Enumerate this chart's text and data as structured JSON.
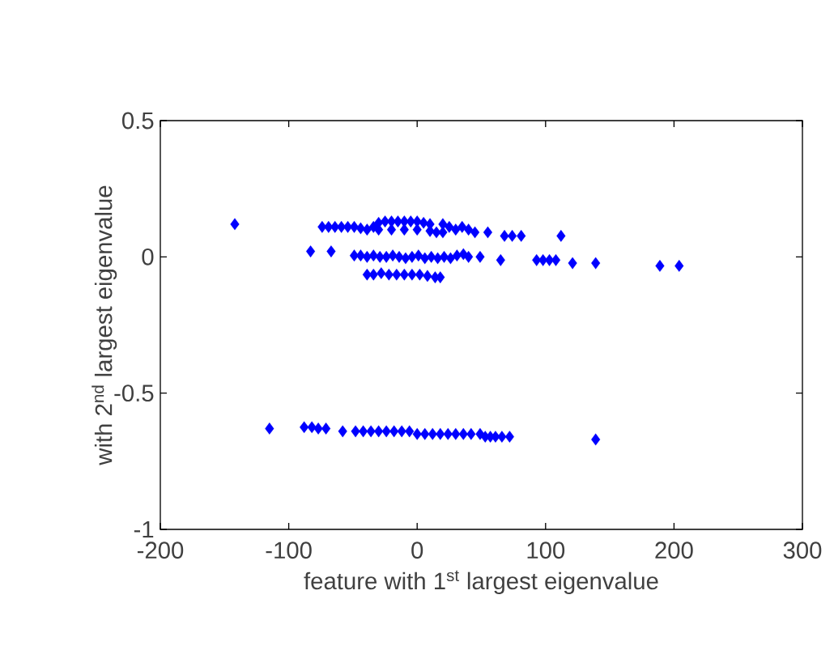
{
  "chart_data": {
    "type": "scatter",
    "xlabel": "feature with 1$^{st}$ largest eigenvalue",
    "ylabel": "with 2$^{nd}$ largest eigenvalue",
    "xlim": [
      -200,
      300
    ],
    "xticks": [
      -200,
      -100,
      0,
      100,
      200,
      300
    ],
    "ylim": [
      -1,
      0.5
    ],
    "yticks": [
      -1,
      -0.5,
      0,
      0.5
    ],
    "marker": "diamond",
    "grid": false,
    "series": [
      {
        "color": "#0000ff",
        "x": [
          -142,
          -74,
          -69,
          -64,
          -59,
          -54,
          -49,
          -44,
          -39,
          -34,
          -30,
          -25,
          -20,
          -15,
          -10,
          -5,
          0,
          5,
          10,
          -30,
          -20,
          -10,
          0,
          10,
          15,
          20,
          20,
          25,
          30,
          35,
          40,
          45,
          55,
          68,
          74,
          81,
          112,
          -83,
          -67,
          -49,
          -44,
          -39,
          -34,
          -29,
          -24,
          -19,
          -14,
          -9,
          -4,
          1,
          6,
          11,
          16,
          21,
          26,
          31,
          36,
          40,
          49,
          65,
          93,
          98,
          103,
          108,
          121,
          139,
          189,
          204,
          -39,
          -34,
          -28,
          -22,
          -16,
          -10,
          -4,
          2,
          8,
          14,
          18,
          -115,
          -88,
          -82,
          -77,
          -71,
          -58,
          -48,
          -42,
          -36,
          -30,
          -24,
          -18,
          -12,
          -6,
          0,
          6,
          12,
          18,
          24,
          30,
          36,
          42,
          49,
          53,
          57,
          61,
          66,
          72,
          139
        ],
        "values": [
          0.12,
          0.11,
          0.11,
          0.11,
          0.11,
          0.11,
          0.11,
          0.105,
          0.1,
          0.11,
          0.125,
          0.13,
          0.13,
          0.13,
          0.13,
          0.13,
          0.13,
          0.125,
          0.12,
          0.1,
          0.1,
          0.1,
          0.1,
          0.095,
          0.09,
          0.09,
          0.12,
          0.11,
          0.1,
          0.11,
          0.1,
          0.09,
          0.09,
          0.077,
          0.077,
          0.077,
          0.077,
          0.02,
          0.02,
          0.005,
          0.005,
          0.0,
          0.005,
          0.0,
          0.0,
          0.005,
          0.0,
          -0.005,
          0.0,
          0.005,
          -0.005,
          0.0,
          -0.005,
          0.0,
          -0.005,
          0.005,
          0.01,
          0.0,
          0.0,
          -0.012,
          -0.012,
          -0.012,
          -0.012,
          -0.012,
          -0.023,
          -0.023,
          -0.033,
          -0.033,
          -0.065,
          -0.065,
          -0.06,
          -0.065,
          -0.065,
          -0.065,
          -0.065,
          -0.065,
          -0.07,
          -0.075,
          -0.075,
          -0.63,
          -0.625,
          -0.625,
          -0.63,
          -0.63,
          -0.64,
          -0.64,
          -0.64,
          -0.64,
          -0.64,
          -0.64,
          -0.64,
          -0.64,
          -0.64,
          -0.65,
          -0.65,
          -0.65,
          -0.65,
          -0.65,
          -0.65,
          -0.65,
          -0.65,
          -0.65,
          -0.66,
          -0.66,
          -0.66,
          -0.66,
          -0.66,
          -0.67
        ]
      }
    ]
  }
}
